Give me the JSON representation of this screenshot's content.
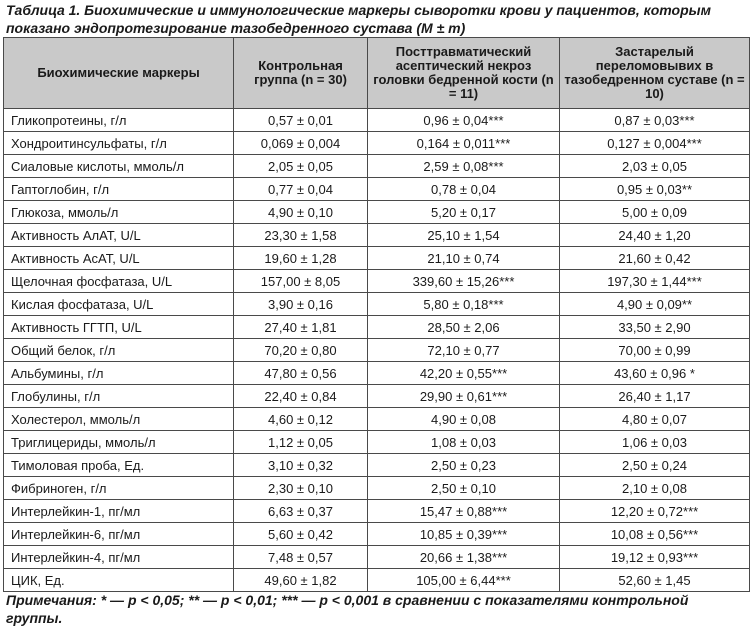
{
  "caption": "Таблица 1. Биохимические и иммунологические маркеры сыворотки крови у пациентов, которым показано эндопротезирование тазобедренного сустава (M ± m)",
  "headers": [
    "Биохимические маркеры",
    "Контрольная группа (n = 30)",
    "Посттравматический асептический некроз головки бедренной кости (n = 11)",
    "Застарелый переломовывих в тазобедренном суставе (n = 10)"
  ],
  "rows": [
    [
      "Гликопротеины, г/л",
      "0,57 ± 0,01",
      "0,96 ± 0,04***",
      "0,87 ± 0,03***"
    ],
    [
      "Хондроитинсульфаты, г/л",
      "0,069 ± 0,004",
      "0,164 ± 0,011***",
      "0,127 ± 0,004***"
    ],
    [
      "Сиаловые кислоты, ммоль/л",
      "2,05 ± 0,05",
      "2,59 ± 0,08***",
      "2,03 ± 0,05"
    ],
    [
      "Гаптоглобин, г/л",
      "0,77 ± 0,04",
      "0,78 ± 0,04",
      "0,95 ± 0,03**"
    ],
    [
      "Глюкоза, ммоль/л",
      "4,90 ± 0,10",
      "5,20 ± 0,17",
      "5,00 ± 0,09"
    ],
    [
      "Активность АлАТ, U/L",
      "23,30 ± 1,58",
      "25,10 ± 1,54",
      "24,40 ± 1,20"
    ],
    [
      "Активность АсАТ, U/L",
      "19,60 ± 1,28",
      "21,10 ± 0,74",
      "21,60 ± 0,42"
    ],
    [
      "Щелочная фосфатаза, U/L",
      "157,00 ± 8,05",
      "339,60 ± 15,26***",
      "197,30 ± 1,44***"
    ],
    [
      "Кислая фосфатаза, U/L",
      "3,90 ± 0,16",
      "5,80 ± 0,18***",
      "4,90 ± 0,09**"
    ],
    [
      "Активность ГГТП, U/L",
      "27,40 ± 1,81",
      "28,50 ± 2,06",
      "33,50 ± 2,90"
    ],
    [
      "Общий белок, г/л",
      "70,20 ± 0,80",
      "72,10 ± 0,77",
      "70,00 ± 0,99"
    ],
    [
      "Альбумины, г/л",
      "47,80 ± 0,56",
      "42,20 ± 0,55***",
      "43,60 ± 0,96 *"
    ],
    [
      "Глобулины, г/л",
      "22,40 ± 0,84",
      "29,90 ± 0,61***",
      "26,40 ± 1,17"
    ],
    [
      "Холестерол, ммоль/л",
      "4,60 ± 0,12",
      "4,90 ± 0,08",
      "4,80 ± 0,07"
    ],
    [
      "Триглицериды, ммоль/л",
      "1,12 ± 0,05",
      "1,08 ± 0,03",
      "1,06 ± 0,03"
    ],
    [
      "Тимоловая проба, Ед.",
      "3,10 ± 0,32",
      "2,50 ± 0,23",
      "2,50 ± 0,24"
    ],
    [
      "Фибриноген, г/л",
      "2,30 ± 0,10",
      "2,50 ± 0,10",
      "2,10 ± 0,08"
    ],
    [
      "Интерлейкин-1, пг/мл",
      "6,63 ± 0,37",
      "15,47 ± 0,88***",
      "12,20 ± 0,72***"
    ],
    [
      "Интерлейкин-6, пг/мл",
      "5,60 ± 0,42",
      "10,85 ± 0,39***",
      "10,08 ± 0,56***"
    ],
    [
      "Интерлейкин-4, пг/мл",
      "7,48 ± 0,57",
      "20,66 ± 1,38***",
      "19,12 ± 0,93***"
    ],
    [
      "ЦИК, Ед.",
      "49,60 ± 1,82",
      "105,00 ± 6,44***",
      "52,60 ± 1,45"
    ]
  ],
  "notes": "Примечания: * — р < 0,05; ** — р < 0,01; *** — р < 0,001 в сравнении с показателями контрольной группы."
}
